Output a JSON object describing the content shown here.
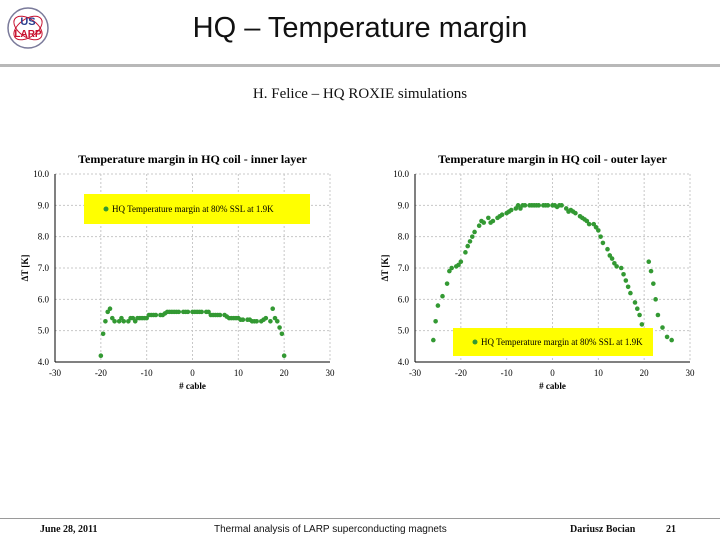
{
  "slide": {
    "title": "HQ – Temperature margin",
    "subtitle": "H. Felice – HQ ROXIE simulations",
    "logo": {
      "line1": "US",
      "line2": "LARP",
      "icon": "us-larp-logo"
    }
  },
  "footer": {
    "date": "June 28, 2011",
    "center": "Thermal analysis of LARP superconducting magnets",
    "author": "Dariusz Bocian",
    "page": "21"
  },
  "colors": {
    "marker": "#339933",
    "legend_bg": "#ffff00",
    "grid": "#c8c8c8",
    "axis": "#000000"
  },
  "chart_data": [
    {
      "type": "scatter",
      "title": "Temperature margin in HQ coil - inner layer",
      "xlabel": "# cable",
      "ylabel": "ΔT [K]",
      "xlim": [
        -30,
        30
      ],
      "ylim": [
        4.0,
        10.0
      ],
      "xticks": [
        "-30",
        "-20",
        "-10",
        "0",
        "10",
        "20",
        "30"
      ],
      "yticks": [
        "4.0",
        "5.0",
        "6.0",
        "7.0",
        "8.0",
        "9.0",
        "10.0"
      ],
      "grid": true,
      "legend": "top-left",
      "series": [
        {
          "name": "HQ Temperature margin at 80% SSL at 1.9K",
          "x": [
            -20,
            -19.5,
            -19,
            -18.5,
            -18,
            -17.5,
            -17,
            -16,
            -15.5,
            -15,
            -14,
            -13.5,
            -13,
            -12.5,
            -12,
            -11.5,
            -11,
            -10.5,
            -10,
            -9.5,
            -9,
            -8.5,
            -8,
            -7,
            -6.5,
            -6,
            -5.5,
            -5,
            -4.5,
            -4,
            -3.5,
            -3,
            -2,
            -1.5,
            -1,
            0,
            0.5,
            1,
            1.5,
            2,
            3,
            3.5,
            4,
            4.5,
            5,
            5.5,
            6,
            7,
            7.5,
            8,
            8.5,
            9,
            9.5,
            10,
            10.5,
            11,
            12,
            12.5,
            13,
            13.5,
            14,
            15,
            15.5,
            16,
            17,
            17.5,
            18,
            18.5,
            19,
            19.5,
            20
          ],
          "y": [
            4.2,
            4.9,
            5.3,
            5.6,
            5.7,
            5.4,
            5.3,
            5.3,
            5.4,
            5.3,
            5.3,
            5.4,
            5.4,
            5.3,
            5.4,
            5.4,
            5.4,
            5.4,
            5.4,
            5.5,
            5.5,
            5.5,
            5.5,
            5.5,
            5.5,
            5.55,
            5.6,
            5.6,
            5.6,
            5.6,
            5.6,
            5.6,
            5.6,
            5.6,
            5.6,
            5.6,
            5.6,
            5.6,
            5.6,
            5.6,
            5.6,
            5.6,
            5.5,
            5.5,
            5.5,
            5.5,
            5.5,
            5.5,
            5.45,
            5.4,
            5.4,
            5.4,
            5.4,
            5.4,
            5.35,
            5.35,
            5.35,
            5.35,
            5.3,
            5.3,
            5.3,
            5.3,
            5.35,
            5.4,
            5.3,
            5.7,
            5.4,
            5.3,
            5.1,
            4.9,
            4.2
          ]
        }
      ]
    },
    {
      "type": "scatter",
      "title": "Temperature margin in HQ coil - outer layer",
      "xlabel": "# cable",
      "ylabel": "ΔT [K]",
      "xlim": [
        -30,
        30
      ],
      "ylim": [
        4.0,
        10.0
      ],
      "xticks": [
        "-30",
        "-20",
        "-10",
        "0",
        "10",
        "20",
        "30"
      ],
      "yticks": [
        "4.0",
        "5.0",
        "6.0",
        "7.0",
        "8.0",
        "9.0",
        "10.0"
      ],
      "grid": true,
      "legend": "bottom-right",
      "series": [
        {
          "name": "HQ Temperature margin at 80% SSL at 1.9K",
          "x": [
            -26,
            -25.5,
            -25,
            -24,
            -23,
            -22.5,
            -22,
            -21,
            -20.5,
            -20,
            -19,
            -18.5,
            -18,
            -17.5,
            -17,
            -16,
            -15.5,
            -15,
            -14,
            -13.5,
            -13,
            -12,
            -11.5,
            -11,
            -10,
            -9.5,
            -9,
            -8,
            -7.5,
            -7,
            -6.5,
            -6,
            -5,
            -4.5,
            -4,
            -3.5,
            -3,
            -2,
            -1.5,
            -1,
            0,
            0.5,
            1,
            1.5,
            2,
            3,
            3.5,
            4,
            4.5,
            5,
            6,
            6.5,
            7,
            7.5,
            8,
            9,
            9.5,
            10,
            10.5,
            11,
            12,
            12.5,
            13,
            13.5,
            14,
            15,
            15.5,
            16,
            16.5,
            17,
            18,
            18.5,
            19,
            19.5,
            20,
            21,
            21.5,
            22,
            22.5,
            23,
            24,
            25,
            26
          ],
          "y": [
            4.7,
            5.3,
            5.8,
            6.1,
            6.5,
            6.9,
            7.0,
            7.05,
            7.1,
            7.2,
            7.5,
            7.7,
            7.85,
            8.0,
            8.15,
            8.35,
            8.5,
            8.45,
            8.6,
            8.45,
            8.5,
            8.6,
            8.65,
            8.7,
            8.75,
            8.8,
            8.85,
            8.9,
            9.0,
            8.9,
            9.0,
            9.0,
            9.0,
            9.0,
            9.0,
            9.0,
            9.0,
            9.0,
            9.0,
            9.0,
            9.0,
            9.0,
            8.95,
            9.0,
            9.0,
            8.9,
            8.8,
            8.85,
            8.8,
            8.75,
            8.65,
            8.6,
            8.55,
            8.5,
            8.4,
            8.4,
            8.3,
            8.2,
            8.0,
            7.8,
            7.6,
            7.4,
            7.3,
            7.15,
            7.05,
            7.0,
            6.8,
            6.6,
            6.4,
            6.2,
            5.9,
            5.7,
            5.5,
            5.2,
            4.7,
            7.2,
            6.9,
            6.5,
            6.0,
            5.5,
            5.1,
            4.8,
            4.7
          ]
        }
      ]
    }
  ]
}
